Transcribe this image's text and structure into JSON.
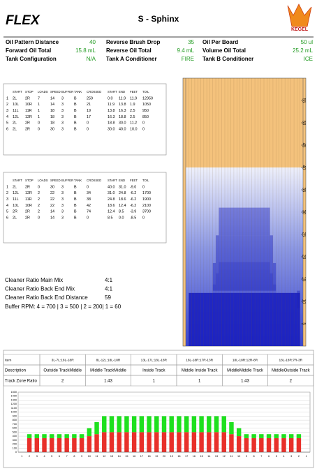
{
  "header": {
    "logo_left": "FLEX",
    "title": "S - Sphinx",
    "logo_right": "KEGEL"
  },
  "info": [
    {
      "label": "Oil Pattern Distance",
      "value": "40"
    },
    {
      "label": "Reverse Brush Drop",
      "value": "35"
    },
    {
      "label": "Oil Per Board",
      "value": "50 ul"
    },
    {
      "label": "Forward Oil Total",
      "value": "15.8 mL"
    },
    {
      "label": "Reverse Oil Total",
      "value": "9.4 mL"
    },
    {
      "label": "Volume Oil Total",
      "value": "25.2 mL"
    },
    {
      "label": "Tank Configuration",
      "value": "N/A"
    },
    {
      "label": "Tank A Conditioner",
      "value": "FIRE"
    },
    {
      "label": "Tank B Conditioner",
      "value": "ICE"
    }
  ],
  "forward_table": {
    "header": [
      "START",
      "STOP",
      "LOADS",
      "SPEED",
      "BUFFER",
      "TANK",
      "CROSSED",
      "START",
      "END",
      "FEET",
      "TOIL"
    ],
    "rows": [
      [
        "1",
        "2L",
        "2R",
        "7",
        "14",
        "3",
        "B",
        "259",
        "0.0",
        "11.9",
        "11.9",
        "12950"
      ],
      [
        "2",
        "10L",
        "10R",
        "1",
        "14",
        "3",
        "B",
        "21",
        "11.9",
        "13.8",
        "1.9",
        "1050"
      ],
      [
        "3",
        "11L",
        "11R",
        "1",
        "18",
        "3",
        "B",
        "19",
        "13.8",
        "16.3",
        "2.5",
        "950"
      ],
      [
        "4",
        "12L",
        "12R",
        "1",
        "18",
        "3",
        "B",
        "17",
        "16.3",
        "18.8",
        "2.5",
        "850"
      ],
      [
        "5",
        "2L",
        "2R",
        "0",
        "18",
        "3",
        "B",
        "0",
        "18.8",
        "30.0",
        "11.2",
        "0"
      ],
      [
        "6",
        "2L",
        "2R",
        "0",
        "30",
        "3",
        "B",
        "0",
        "30.0",
        "40.0",
        "10.0",
        "0"
      ]
    ]
  },
  "reverse_table": {
    "header": [
      "START",
      "STOP",
      "LOADS",
      "SPEED",
      "BUFFER",
      "TANK",
      "CROSSED",
      "START",
      "END",
      "FEET",
      "TOIL"
    ],
    "rows": [
      [
        "1",
        "2L",
        "2R",
        "0",
        "30",
        "3",
        "B",
        "0",
        "40.0",
        "31.0",
        "-9.0",
        "0"
      ],
      [
        "2",
        "12L",
        "12R",
        "2",
        "22",
        "3",
        "B",
        "34",
        "31.0",
        "24.8",
        "-6.2",
        "1700"
      ],
      [
        "3",
        "11L",
        "11R",
        "2",
        "22",
        "3",
        "B",
        "38",
        "24.8",
        "18.6",
        "-6.2",
        "1900"
      ],
      [
        "4",
        "10L",
        "10R",
        "2",
        "22",
        "3",
        "B",
        "42",
        "18.6",
        "12.4",
        "-6.2",
        "2100"
      ],
      [
        "5",
        "2R",
        "2R",
        "2",
        "14",
        "3",
        "B",
        "74",
        "12.4",
        "8.5",
        "-3.9",
        "3700"
      ],
      [
        "6",
        "2L",
        "2R",
        "0",
        "14",
        "3",
        "B",
        "0",
        "8.5",
        "0.0",
        "-8.5",
        "0"
      ]
    ]
  },
  "cleaner": [
    {
      "label": "Cleaner Ratio Main Mix",
      "value": "4:1"
    },
    {
      "label": "Cleaner Ratio Back End Mix",
      "value": "4:1"
    },
    {
      "label": "Cleaner Ratio Back End Distance",
      "value": "59"
    }
  ],
  "buffer_rpm": "Buffer RPM: 4 = 700 | 3 = 500 | 2 = 200| 1 = 60",
  "lane": {
    "ylim": [
      0,
      60
    ],
    "yticks": [
      5,
      10,
      15,
      20,
      25,
      30,
      35,
      40,
      45,
      50,
      55
    ]
  },
  "zone_table": {
    "header": [
      "Item",
      "3L-7L:18L-18R",
      "8L-12L:18L-18R",
      "13L-17L:18L-18R",
      "18L-18R:17R-13R",
      "18L-18R:12R-8R",
      "18L-18R:7R-3R"
    ],
    "rows": [
      [
        "Description",
        "Outside TrackMiddle",
        "Middle TrackMiddle",
        "Inside Track",
        "Middle Inside Track",
        "MiddleMiddle Track",
        "MiddleOutside Track"
      ],
      [
        "Track Zone Ratio",
        "2",
        "1.43",
        "1",
        "1",
        "1.43",
        "2"
      ]
    ]
  },
  "chart_data": {
    "type": "stacked_bar",
    "categories": [
      "1",
      "2",
      "3",
      "4",
      "5",
      "6",
      "7",
      "8",
      "9",
      "10",
      "11",
      "12",
      "13",
      "14",
      "15",
      "16",
      "17",
      "18",
      "19",
      "20",
      "19",
      "18",
      "17",
      "16",
      "15",
      "14",
      "13",
      "12",
      "11",
      "10",
      "9",
      "8",
      "7",
      "6",
      "5",
      "4",
      "3",
      "2",
      "1"
    ],
    "series": [
      {
        "color": "#e8302a",
        "values": [
          0,
          350,
          350,
          350,
          350,
          350,
          350,
          350,
          350,
          400,
          450,
          500,
          500,
          500,
          500,
          500,
          500,
          500,
          500,
          500,
          500,
          500,
          500,
          500,
          500,
          500,
          500,
          500,
          450,
          400,
          350,
          350,
          350,
          350,
          350,
          350,
          350,
          350,
          0
        ]
      },
      {
        "color": "#1ee01e",
        "values": [
          0,
          100,
          100,
          100,
          100,
          100,
          100,
          100,
          100,
          200,
          300,
          400,
          400,
          400,
          400,
          400,
          400,
          400,
          400,
          400,
          400,
          400,
          400,
          400,
          400,
          400,
          400,
          400,
          300,
          200,
          100,
          100,
          100,
          100,
          100,
          100,
          100,
          100,
          0
        ]
      }
    ],
    "ylim": [
      0,
      1500
    ],
    "yticks": [
      0,
      100,
      200,
      300,
      400,
      500,
      600,
      700,
      800,
      900,
      1000,
      1100,
      1200,
      1300,
      1400,
      1500
    ],
    "grid": true
  }
}
